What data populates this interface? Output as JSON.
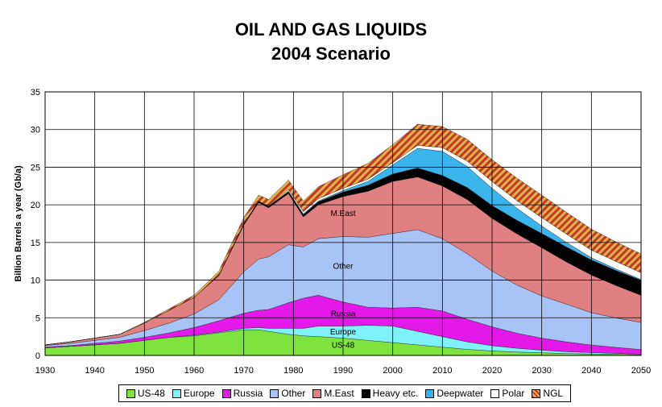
{
  "chart_data": {
    "type": "area",
    "title": "OIL AND GAS LIQUIDS",
    "subtitle": "2004 Scenario",
    "xlabel": "",
    "ylabel": "Billion Barrels a year (Gb/a)",
    "xlim": [
      1930,
      2050
    ],
    "ylim": [
      0,
      35
    ],
    "xticks": [
      1930,
      1940,
      1950,
      1960,
      1970,
      1980,
      1990,
      2000,
      2010,
      2020,
      2030,
      2040,
      2050
    ],
    "yticks": [
      0,
      5,
      10,
      15,
      20,
      25,
      30,
      35
    ],
    "grid": true,
    "stacked": true,
    "legend_position": "bottom",
    "x": [
      1930,
      1935,
      1940,
      1945,
      1950,
      1955,
      1960,
      1965,
      1970,
      1973,
      1975,
      1979,
      1982,
      1985,
      1990,
      1995,
      2000,
      2005,
      2010,
      2015,
      2020,
      2025,
      2030,
      2035,
      2040,
      2045,
      2050
    ],
    "series": [
      {
        "name": "US-48",
        "color": "#7fe33d",
        "values": [
          1.0,
          1.2,
          1.4,
          1.6,
          2.0,
          2.4,
          2.6,
          3.0,
          3.4,
          3.4,
          3.2,
          2.8,
          2.6,
          2.5,
          2.3,
          2.0,
          1.7,
          1.4,
          1.1,
          0.8,
          0.6,
          0.45,
          0.35,
          0.25,
          0.2,
          0.15,
          0.1
        ]
      },
      {
        "name": "Europe",
        "color": "#7ff1f9",
        "values": [
          0.0,
          0.0,
          0.0,
          0.0,
          0.0,
          0.0,
          0.1,
          0.1,
          0.2,
          0.3,
          0.4,
          0.8,
          1.0,
          1.4,
          1.6,
          2.0,
          2.2,
          1.8,
          1.4,
          1.0,
          0.7,
          0.5,
          0.35,
          0.25,
          0.18,
          0.12,
          0.08
        ]
      },
      {
        "name": "Russia",
        "color": "#e418e8",
        "values": [
          0.1,
          0.1,
          0.2,
          0.3,
          0.4,
          0.6,
          1.0,
          1.5,
          2.0,
          2.3,
          2.5,
          3.4,
          4.0,
          4.1,
          3.2,
          2.4,
          2.4,
          3.2,
          3.4,
          3.0,
          2.5,
          2.0,
          1.6,
          1.3,
          1.0,
          0.8,
          0.6
        ]
      },
      {
        "name": "Other",
        "color": "#a8c4f6",
        "values": [
          0.2,
          0.3,
          0.4,
          0.5,
          0.9,
          1.3,
          1.8,
          2.8,
          5.5,
          6.8,
          7.0,
          7.7,
          6.8,
          7.5,
          8.7,
          9.3,
          9.9,
          10.3,
          9.6,
          8.7,
          7.4,
          6.4,
          5.6,
          5.0,
          4.3,
          3.9,
          3.6
        ]
      },
      {
        "name": "M.East",
        "color": "#e08080",
        "values": [
          0.1,
          0.2,
          0.3,
          0.4,
          1.0,
          1.7,
          2.2,
          3.2,
          6.2,
          7.5,
          6.5,
          6.8,
          4.0,
          4.5,
          5.3,
          6.1,
          6.9,
          7.0,
          7.0,
          7.2,
          7.0,
          6.8,
          6.4,
          5.6,
          5.0,
          4.3,
          3.6
        ]
      },
      {
        "name": "Heavy etc.",
        "color": "#000000",
        "values": [
          0.0,
          0.0,
          0.0,
          0.0,
          0.0,
          0.0,
          0.0,
          0.1,
          0.2,
          0.2,
          0.2,
          0.3,
          0.3,
          0.4,
          0.6,
          0.8,
          1.0,
          1.2,
          1.4,
          1.6,
          1.7,
          1.8,
          1.9,
          2.0,
          2.0,
          2.0,
          2.0
        ]
      },
      {
        "name": "Deepwater",
        "color": "#3ab4ec",
        "values": [
          0.0,
          0.0,
          0.0,
          0.0,
          0.0,
          0.0,
          0.0,
          0.0,
          0.0,
          0.0,
          0.0,
          0.0,
          0.1,
          0.1,
          0.2,
          0.5,
          1.2,
          2.6,
          3.2,
          2.8,
          2.3,
          1.6,
          1.0,
          0.6,
          0.3,
          0.2,
          0.1
        ]
      },
      {
        "name": "Polar",
        "color": "#ffffff",
        "values": [
          0.0,
          0.0,
          0.0,
          0.0,
          0.0,
          0.0,
          0.0,
          0.0,
          0.0,
          0.0,
          0.0,
          0.2,
          0.3,
          0.3,
          0.3,
          0.3,
          0.3,
          0.4,
          0.5,
          0.7,
          0.9,
          1.0,
          1.1,
          1.1,
          1.0,
          1.0,
          0.9
        ]
      },
      {
        "name": "NGL",
        "color": "#d99a1f",
        "pattern": "striped",
        "values": [
          0.0,
          0.0,
          0.0,
          0.0,
          0.1,
          0.2,
          0.3,
          0.5,
          0.8,
          0.8,
          0.9,
          1.3,
          1.4,
          1.6,
          1.8,
          2.1,
          2.4,
          2.8,
          2.8,
          2.9,
          2.9,
          3.0,
          3.0,
          2.9,
          2.8,
          2.6,
          2.5
        ]
      }
    ],
    "annotations": [
      {
        "text": "M.East",
        "x": 1990,
        "y": 18.5
      },
      {
        "text": "Other",
        "x": 1990,
        "y": 11.5
      },
      {
        "text": "Russia",
        "x": 1990,
        "y": 5.2
      },
      {
        "text": "Europe",
        "x": 1990,
        "y": 2.8
      },
      {
        "text": "US-48",
        "x": 1990,
        "y": 1.0
      }
    ]
  }
}
